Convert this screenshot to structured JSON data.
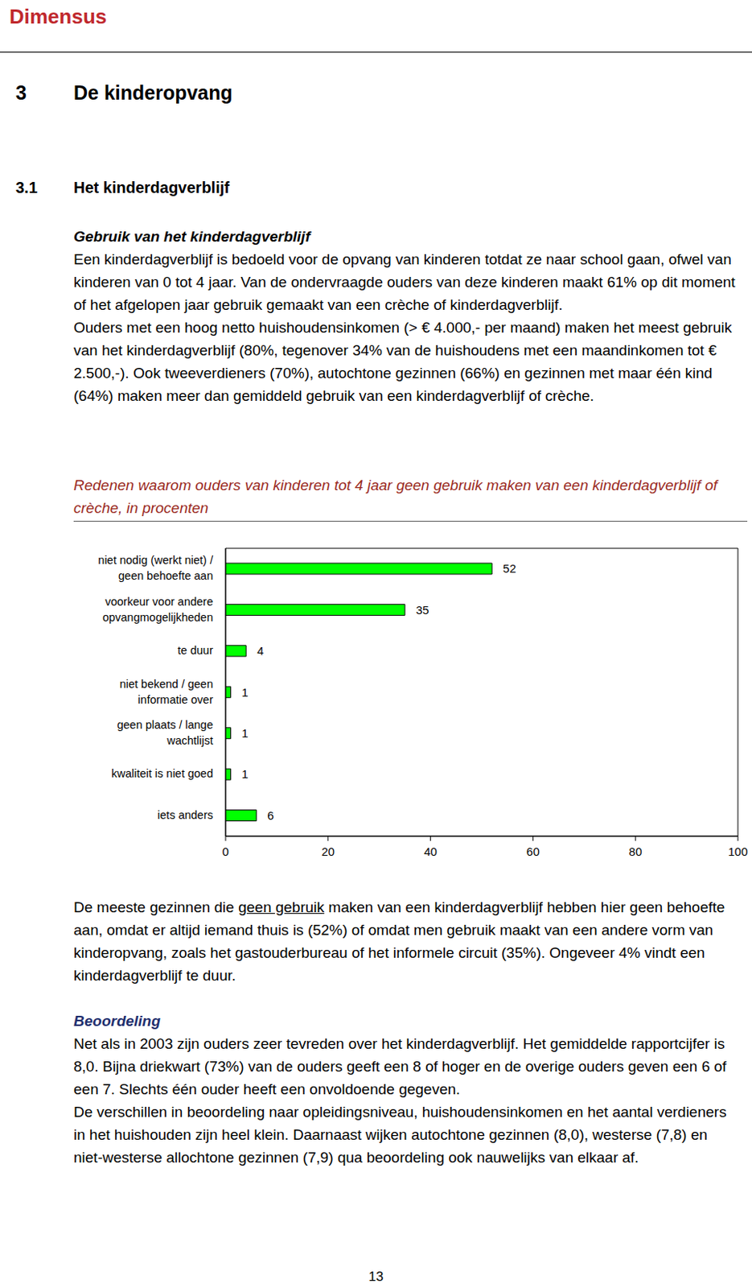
{
  "header": {
    "logo": "Dimensus"
  },
  "chapter": {
    "number": "3",
    "title": "De kinderopvang"
  },
  "section": {
    "number": "3.1",
    "title": "Het kinderdagverblijf"
  },
  "subsection_1": {
    "title": "Gebruik van het kinderdagverblijf",
    "paragraphs": [
      "Een kinderdagverblijf is bedoeld voor de opvang van kinderen totdat ze naar school gaan, ofwel van kinderen van 0 tot 4 jaar. Van de ondervraagde ouders van deze kinderen maakt 61% op dit moment of het afgelopen jaar gebruik gemaakt van een crèche of kinderdagverblijf.",
      "Ouders met een hoog netto huishoudensinkomen (> € 4.000,- per maand) maken het meest gebruik van het kinderdagverblijf (80%, tegenover 34% van de huishoudens met een maandinkomen tot € 2.500,-). Ook tweeverdieners (70%), autochtone gezinnen (66%) en gezinnen met maar één kind (64%) maken meer dan gemiddeld gebruik van een kinderdagverblijf of crèche."
    ]
  },
  "chart_data": {
    "type": "bar",
    "orientation": "horizontal",
    "title": "Redenen waarom ouders van kinderen tot 4 jaar geen gebruik maken van een kinderdagverblijf of crèche, in procenten",
    "categories": [
      "niet nodig (werkt niet) / geen behoefte aan",
      "voorkeur voor andere opvangmogelijkheden",
      "te duur",
      "niet bekend / geen informatie over",
      "geen plaats / lange wachtlijst",
      "kwaliteit is niet goed",
      "iets anders"
    ],
    "values": [
      52,
      35,
      4,
      1,
      1,
      1,
      6
    ],
    "color": "#00ff00",
    "xlim": [
      0,
      100
    ],
    "xticks": [
      0,
      20,
      40,
      60,
      80,
      100
    ],
    "data_labels": true,
    "grid": false
  },
  "after_chart": {
    "segments": [
      {
        "text": "De meeste gezinnen die "
      },
      {
        "text": "geen gebruik",
        "underline": true
      },
      {
        "text": " maken van een kinderdagverblijf hebben hier geen behoefte aan, omdat er altijd iemand thuis is (52%) of omdat men gebruik maakt van een andere vorm van kinderopvang, zoals het gastouderbureau of het informele circuit (35%). Ongeveer 4% vindt een kinderdagverblijf te duur."
      }
    ]
  },
  "subsection_2": {
    "title": "Beoordeling",
    "paragraphs": [
      "Net als in 2003 zijn ouders zeer tevreden over het kinderdagverblijf. Het gemiddelde rapportcijfer is 8,0. Bijna driekwart (73%) van de ouders geeft een 8 of hoger en de overige ouders geven een 6 of een 7. Slechts één ouder heeft een onvoldoende gegeven.",
      "De verschillen in beoordeling naar opleidingsniveau, huishoudensinkomen en het aantal verdieners in het huishouden zijn heel klein. Daarnaast wijken autochtone gezinnen (8,0), westerse (7,8) en niet-westerse allochtone gezinnen (7,9) qua beoordeling ook nauwelijks van elkaar af."
    ]
  },
  "page_number": "13"
}
